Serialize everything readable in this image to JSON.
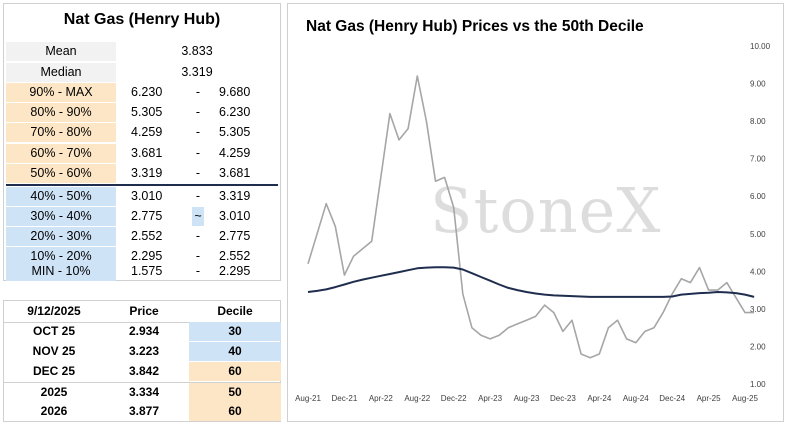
{
  "deciles_panel": {
    "title": "Nat Gas (Henry Hub)",
    "stats": [
      {
        "label": "Mean",
        "value": "3.833"
      },
      {
        "label": "Median",
        "value": "3.319"
      }
    ],
    "rows": [
      {
        "label": "90% - MAX",
        "lo": "6.230",
        "sep": "-",
        "hi": "9.680",
        "band": "high"
      },
      {
        "label": "80% - 90%",
        "lo": "5.305",
        "sep": "-",
        "hi": "6.230",
        "band": "high"
      },
      {
        "label": "70% - 80%",
        "lo": "4.259",
        "sep": "-",
        "hi": "5.305",
        "band": "high"
      },
      {
        "label": "60% - 70%",
        "lo": "3.681",
        "sep": "-",
        "hi": "4.259",
        "band": "high"
      },
      {
        "label": "50% - 60%",
        "lo": "3.319",
        "sep": "-",
        "hi": "3.681",
        "band": "high"
      },
      {
        "label": "40% - 50%",
        "lo": "3.010",
        "sep": "-",
        "hi": "3.319",
        "band": "low"
      },
      {
        "label": "30% - 40%",
        "lo": "2.775",
        "sep": "~",
        "hi": "3.010",
        "band": "low"
      },
      {
        "label": "20% - 30%",
        "lo": "2.552",
        "sep": "-",
        "hi": "2.775",
        "band": "low"
      },
      {
        "label": "10% - 20%",
        "lo": "2.295",
        "sep": "-",
        "hi": "2.552",
        "band": "low"
      },
      {
        "label": "MIN - 10%",
        "lo": "1.575",
        "sep": "-",
        "hi": "2.295",
        "band": "low"
      }
    ]
  },
  "contracts_table": {
    "headers": [
      "9/12/2025",
      "Price",
      "Decile"
    ],
    "rows": [
      {
        "contract": "OCT 25",
        "price": "2.934",
        "decile": "30",
        "band": "low"
      },
      {
        "contract": "NOV 25",
        "price": "3.223",
        "decile": "40",
        "band": "low"
      },
      {
        "contract": "DEC 25",
        "price": "3.842",
        "decile": "60",
        "band": "high"
      },
      {
        "contract": "2025",
        "price": "3.334",
        "decile": "50",
        "band": "high"
      },
      {
        "contract": "2026",
        "price": "3.877",
        "decile": "60",
        "band": "high"
      }
    ]
  },
  "colors": {
    "high_band": "#fde6c5",
    "low_band": "#cfe3f7",
    "price_line": "#a6a6a6",
    "decile_line": "#1f2d4e"
  },
  "chart_data": {
    "type": "line",
    "title": "Nat Gas (Henry Hub) Prices vs the 50th Decile",
    "watermark": "StoneX",
    "xlabel": "",
    "ylabel": "",
    "ylim": [
      1.0,
      10.0
    ],
    "y_ticks": [
      "1.00",
      "2.00",
      "3.00",
      "4.00",
      "5.00",
      "6.00",
      "7.00",
      "8.00",
      "9.00",
      "10.00"
    ],
    "x_ticks": [
      "Aug-21",
      "Dec-21",
      "Apr-22",
      "Aug-22",
      "Dec-22",
      "Apr-23",
      "Aug-23",
      "Dec-23",
      "Apr-24",
      "Aug-24",
      "Dec-24",
      "Apr-25",
      "Aug-25"
    ],
    "grid": false,
    "legend": "none",
    "series": [
      {
        "role": "price",
        "x": [
          "Aug-21",
          "Sep-21",
          "Oct-21",
          "Nov-21",
          "Dec-21",
          "Jan-22",
          "Feb-22",
          "Mar-22",
          "Apr-22",
          "May-22",
          "Jun-22",
          "Jul-22",
          "Aug-22",
          "Sep-22",
          "Oct-22",
          "Nov-22",
          "Dec-22",
          "Jan-23",
          "Feb-23",
          "Mar-23",
          "Apr-23",
          "May-23",
          "Jun-23",
          "Jul-23",
          "Aug-23",
          "Sep-23",
          "Oct-23",
          "Nov-23",
          "Dec-23",
          "Jan-24",
          "Feb-24",
          "Mar-24",
          "Apr-24",
          "May-24",
          "Jun-24",
          "Jul-24",
          "Aug-24",
          "Sep-24",
          "Oct-24",
          "Nov-24",
          "Dec-24",
          "Jan-25",
          "Feb-25",
          "Mar-25",
          "Apr-25",
          "May-25",
          "Jun-25",
          "Jul-25",
          "Aug-25",
          "Sep-25"
        ],
        "values": [
          4.2,
          5.0,
          5.8,
          5.2,
          3.9,
          4.4,
          4.6,
          4.8,
          6.5,
          8.2,
          7.5,
          7.8,
          9.2,
          8.0,
          6.4,
          6.5,
          5.7,
          3.4,
          2.5,
          2.3,
          2.2,
          2.3,
          2.5,
          2.6,
          2.7,
          2.8,
          3.1,
          2.9,
          2.4,
          2.7,
          1.8,
          1.7,
          1.8,
          2.5,
          2.7,
          2.2,
          2.1,
          2.4,
          2.5,
          2.9,
          3.4,
          3.8,
          3.7,
          4.1,
          3.5,
          3.5,
          3.7,
          3.3,
          2.9,
          2.9
        ]
      },
      {
        "role": "50th_decile",
        "x": [
          "Aug-21",
          "Sep-21",
          "Oct-21",
          "Nov-21",
          "Dec-21",
          "Jan-22",
          "Feb-22",
          "Mar-22",
          "Apr-22",
          "May-22",
          "Jun-22",
          "Jul-22",
          "Aug-22",
          "Sep-22",
          "Oct-22",
          "Nov-22",
          "Dec-22",
          "Jan-23",
          "Feb-23",
          "Mar-23",
          "Apr-23",
          "May-23",
          "Jun-23",
          "Jul-23",
          "Aug-23",
          "Sep-23",
          "Oct-23",
          "Nov-23",
          "Dec-23",
          "Jan-24",
          "Feb-24",
          "Mar-24",
          "Apr-24",
          "May-24",
          "Jun-24",
          "Jul-24",
          "Aug-24",
          "Sep-24",
          "Oct-24",
          "Nov-24",
          "Dec-24",
          "Jan-25",
          "Feb-25",
          "Mar-25",
          "Apr-25",
          "May-25",
          "Jun-25",
          "Jul-25",
          "Aug-25",
          "Sep-25"
        ],
        "values": [
          3.45,
          3.48,
          3.52,
          3.58,
          3.65,
          3.72,
          3.78,
          3.83,
          3.88,
          3.93,
          3.98,
          4.03,
          4.08,
          4.1,
          4.11,
          4.11,
          4.1,
          4.05,
          3.95,
          3.85,
          3.75,
          3.65,
          3.56,
          3.5,
          3.45,
          3.41,
          3.38,
          3.36,
          3.35,
          3.34,
          3.33,
          3.32,
          3.32,
          3.32,
          3.32,
          3.32,
          3.32,
          3.32,
          3.32,
          3.32,
          3.33,
          3.38,
          3.4,
          3.42,
          3.43,
          3.45,
          3.44,
          3.42,
          3.38,
          3.32
        ]
      }
    ]
  }
}
